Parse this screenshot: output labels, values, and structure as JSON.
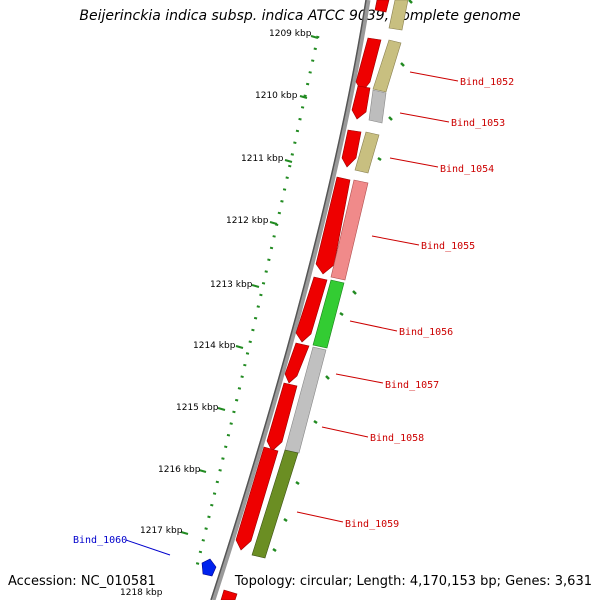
{
  "header": {
    "title": "Beijerinckia indica subsp. indica ATCC 9039, complete genome"
  },
  "footer": {
    "accession": "Accession: NC_010581",
    "topology": "Topology: circular; Length: 4,170,153 bp; Genes: 3,631"
  },
  "ticks": [
    "1209 kbp",
    "1210 kbp",
    "1211 kbp",
    "1212 kbp",
    "1213 kbp",
    "1214 kbp",
    "1215 kbp",
    "1216 kbp",
    "1217 kbp",
    "1218 kbp"
  ],
  "gene_labels": [
    {
      "name": "Bind_1052",
      "color": "#cc0000"
    },
    {
      "name": "Bind_1053",
      "color": "#cc0000"
    },
    {
      "name": "Bind_1054",
      "color": "#cc0000"
    },
    {
      "name": "Bind_1055",
      "color": "#cc0000"
    },
    {
      "name": "Bind_1056",
      "color": "#cc0000"
    },
    {
      "name": "Bind_1057",
      "color": "#cc0000"
    },
    {
      "name": "Bind_1058",
      "color": "#cc0000"
    },
    {
      "name": "Bind_1059",
      "color": "#cc0000"
    },
    {
      "name": "Bind_1060",
      "color": "#0000cc"
    }
  ],
  "colors": {
    "cds_strand": "#ee0000",
    "tick_green": "#228b22",
    "backbone": "#888888"
  }
}
